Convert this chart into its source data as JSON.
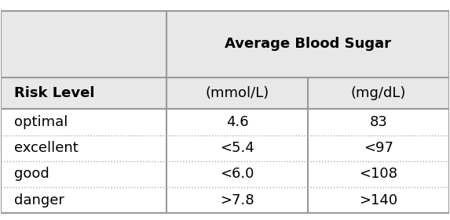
{
  "title": "Average Blood Sugar",
  "col1_header": "Risk Level",
  "col2_header": "(mmol/L)",
  "col3_header": "(mg/dL)",
  "rows": [
    {
      "risk": "optimal",
      "mmol": "4.6",
      "mg": "83"
    },
    {
      "risk": "excellent",
      "mmol": "<5.4",
      "mg": "<97"
    },
    {
      "risk": "good",
      "mmol": "<6.0",
      "mg": "<108"
    },
    {
      "risk": "danger",
      "mmol": ">7.8",
      "mg": ">140"
    }
  ],
  "header_bg": "#e8e8e8",
  "row_bg": "#ffffff",
  "border_color": "#999999",
  "dotted_line_color": "#aaaaaa",
  "header_font_size": 13,
  "cell_font_size": 13,
  "fig_bg": "#ffffff",
  "col_bounds": [
    0.0,
    0.37,
    0.685,
    1.0
  ],
  "row_tops": [
    1.0,
    0.655,
    0.49,
    0.355,
    0.22,
    0.085,
    -0.05
  ]
}
